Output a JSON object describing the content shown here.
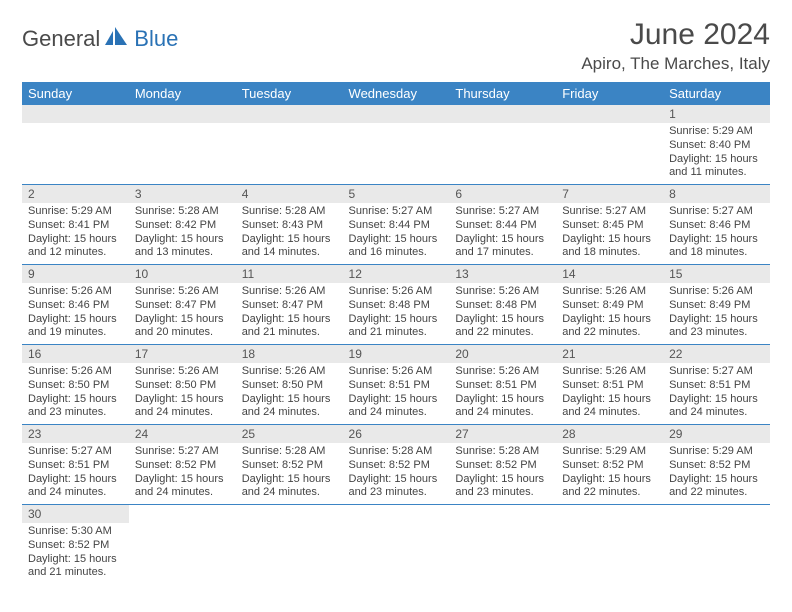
{
  "brand": {
    "part1": "General",
    "part2": "Blue"
  },
  "title": "June 2024",
  "location": "Apiro, The Marches, Italy",
  "colors": {
    "header_bg": "#3b84c4",
    "header_text": "#ffffff",
    "daynum_bg": "#e9e9e9",
    "border": "#3b84c4",
    "brand_gray": "#4a4a4a",
    "brand_blue": "#2a72b5"
  },
  "weekdays": [
    "Sunday",
    "Monday",
    "Tuesday",
    "Wednesday",
    "Thursday",
    "Friday",
    "Saturday"
  ],
  "grid": [
    [
      null,
      null,
      null,
      null,
      null,
      null,
      {
        "n": "1",
        "sunrise": "Sunrise: 5:29 AM",
        "sunset": "Sunset: 8:40 PM",
        "daylight": "Daylight: 15 hours and 11 minutes."
      }
    ],
    [
      {
        "n": "2",
        "sunrise": "Sunrise: 5:29 AM",
        "sunset": "Sunset: 8:41 PM",
        "daylight": "Daylight: 15 hours and 12 minutes."
      },
      {
        "n": "3",
        "sunrise": "Sunrise: 5:28 AM",
        "sunset": "Sunset: 8:42 PM",
        "daylight": "Daylight: 15 hours and 13 minutes."
      },
      {
        "n": "4",
        "sunrise": "Sunrise: 5:28 AM",
        "sunset": "Sunset: 8:43 PM",
        "daylight": "Daylight: 15 hours and 14 minutes."
      },
      {
        "n": "5",
        "sunrise": "Sunrise: 5:27 AM",
        "sunset": "Sunset: 8:44 PM",
        "daylight": "Daylight: 15 hours and 16 minutes."
      },
      {
        "n": "6",
        "sunrise": "Sunrise: 5:27 AM",
        "sunset": "Sunset: 8:44 PM",
        "daylight": "Daylight: 15 hours and 17 minutes."
      },
      {
        "n": "7",
        "sunrise": "Sunrise: 5:27 AM",
        "sunset": "Sunset: 8:45 PM",
        "daylight": "Daylight: 15 hours and 18 minutes."
      },
      {
        "n": "8",
        "sunrise": "Sunrise: 5:27 AM",
        "sunset": "Sunset: 8:46 PM",
        "daylight": "Daylight: 15 hours and 18 minutes."
      }
    ],
    [
      {
        "n": "9",
        "sunrise": "Sunrise: 5:26 AM",
        "sunset": "Sunset: 8:46 PM",
        "daylight": "Daylight: 15 hours and 19 minutes."
      },
      {
        "n": "10",
        "sunrise": "Sunrise: 5:26 AM",
        "sunset": "Sunset: 8:47 PM",
        "daylight": "Daylight: 15 hours and 20 minutes."
      },
      {
        "n": "11",
        "sunrise": "Sunrise: 5:26 AM",
        "sunset": "Sunset: 8:47 PM",
        "daylight": "Daylight: 15 hours and 21 minutes."
      },
      {
        "n": "12",
        "sunrise": "Sunrise: 5:26 AM",
        "sunset": "Sunset: 8:48 PM",
        "daylight": "Daylight: 15 hours and 21 minutes."
      },
      {
        "n": "13",
        "sunrise": "Sunrise: 5:26 AM",
        "sunset": "Sunset: 8:48 PM",
        "daylight": "Daylight: 15 hours and 22 minutes."
      },
      {
        "n": "14",
        "sunrise": "Sunrise: 5:26 AM",
        "sunset": "Sunset: 8:49 PM",
        "daylight": "Daylight: 15 hours and 22 minutes."
      },
      {
        "n": "15",
        "sunrise": "Sunrise: 5:26 AM",
        "sunset": "Sunset: 8:49 PM",
        "daylight": "Daylight: 15 hours and 23 minutes."
      }
    ],
    [
      {
        "n": "16",
        "sunrise": "Sunrise: 5:26 AM",
        "sunset": "Sunset: 8:50 PM",
        "daylight": "Daylight: 15 hours and 23 minutes."
      },
      {
        "n": "17",
        "sunrise": "Sunrise: 5:26 AM",
        "sunset": "Sunset: 8:50 PM",
        "daylight": "Daylight: 15 hours and 24 minutes."
      },
      {
        "n": "18",
        "sunrise": "Sunrise: 5:26 AM",
        "sunset": "Sunset: 8:50 PM",
        "daylight": "Daylight: 15 hours and 24 minutes."
      },
      {
        "n": "19",
        "sunrise": "Sunrise: 5:26 AM",
        "sunset": "Sunset: 8:51 PM",
        "daylight": "Daylight: 15 hours and 24 minutes."
      },
      {
        "n": "20",
        "sunrise": "Sunrise: 5:26 AM",
        "sunset": "Sunset: 8:51 PM",
        "daylight": "Daylight: 15 hours and 24 minutes."
      },
      {
        "n": "21",
        "sunrise": "Sunrise: 5:26 AM",
        "sunset": "Sunset: 8:51 PM",
        "daylight": "Daylight: 15 hours and 24 minutes."
      },
      {
        "n": "22",
        "sunrise": "Sunrise: 5:27 AM",
        "sunset": "Sunset: 8:51 PM",
        "daylight": "Daylight: 15 hours and 24 minutes."
      }
    ],
    [
      {
        "n": "23",
        "sunrise": "Sunrise: 5:27 AM",
        "sunset": "Sunset: 8:51 PM",
        "daylight": "Daylight: 15 hours and 24 minutes."
      },
      {
        "n": "24",
        "sunrise": "Sunrise: 5:27 AM",
        "sunset": "Sunset: 8:52 PM",
        "daylight": "Daylight: 15 hours and 24 minutes."
      },
      {
        "n": "25",
        "sunrise": "Sunrise: 5:28 AM",
        "sunset": "Sunset: 8:52 PM",
        "daylight": "Daylight: 15 hours and 24 minutes."
      },
      {
        "n": "26",
        "sunrise": "Sunrise: 5:28 AM",
        "sunset": "Sunset: 8:52 PM",
        "daylight": "Daylight: 15 hours and 23 minutes."
      },
      {
        "n": "27",
        "sunrise": "Sunrise: 5:28 AM",
        "sunset": "Sunset: 8:52 PM",
        "daylight": "Daylight: 15 hours and 23 minutes."
      },
      {
        "n": "28",
        "sunrise": "Sunrise: 5:29 AM",
        "sunset": "Sunset: 8:52 PM",
        "daylight": "Daylight: 15 hours and 22 minutes."
      },
      {
        "n": "29",
        "sunrise": "Sunrise: 5:29 AM",
        "sunset": "Sunset: 8:52 PM",
        "daylight": "Daylight: 15 hours and 22 minutes."
      }
    ],
    [
      {
        "n": "30",
        "sunrise": "Sunrise: 5:30 AM",
        "sunset": "Sunset: 8:52 PM",
        "daylight": "Daylight: 15 hours and 21 minutes."
      },
      null,
      null,
      null,
      null,
      null,
      null
    ]
  ]
}
